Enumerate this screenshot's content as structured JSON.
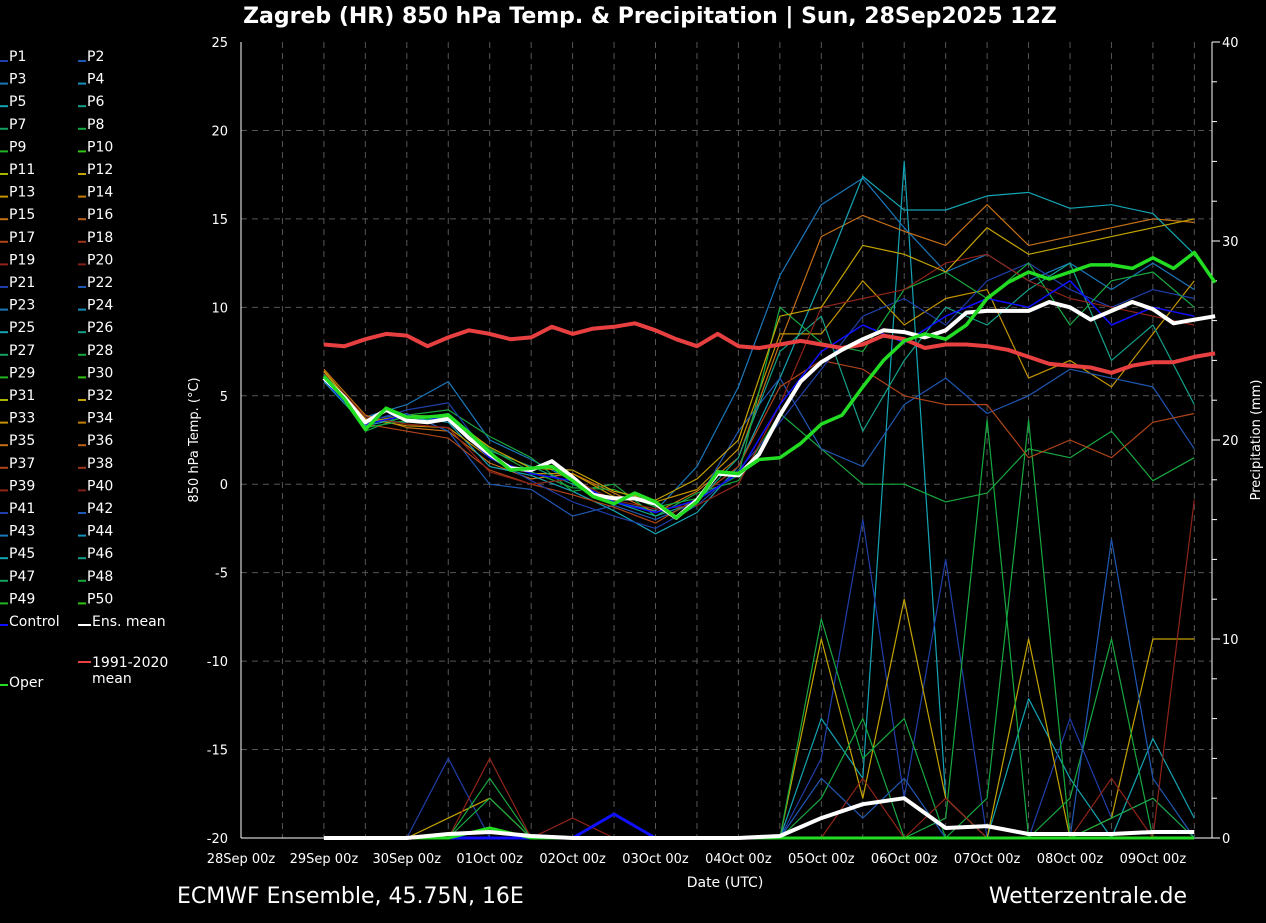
{
  "chart_data": {
    "type": "line",
    "title": "Zagreb  (HR)  850 hPa Temp. & Precipitation | Sun, 28Sep2025 12Z",
    "xlabel": "Date (UTC)",
    "ylabel": "850 hPa Temp. (°C)",
    "y2label": "Precipitation (mm)",
    "ylim": [
      -20,
      25
    ],
    "y2lim": [
      0,
      40
    ],
    "yticks": [
      "25",
      "20",
      "15",
      "10",
      "5",
      "0",
      "-5",
      "-10",
      "-15",
      "-20"
    ],
    "y2ticks": [
      "40",
      "30",
      "20",
      "10",
      "0"
    ],
    "xticks": [
      "28Sep 00z",
      "29Sep 00z",
      "30Sep 00z",
      "01Oct 00z",
      "02Oct 00z",
      "03Oct 00z",
      "04Oct 00z",
      "05Oct 00z",
      "06Oct 00z",
      "07Oct 00z",
      "08Oct 00z",
      "09Oct 00z"
    ],
    "grid": true,
    "legend_position": "left",
    "footer_left": "ECMWF Ensemble, 45.75N, 16E",
    "footer_right": "Wetterzentrale.de",
    "colors": {
      "control": "#1010ff",
      "ens_mean": "#ffffff",
      "climate": "#e84040",
      "oper": "#22dd22",
      "member_palette": [
        "#1f3ea8",
        "#1f58b4",
        "#1a78bc",
        "#1690bc",
        "#14a4b4",
        "#14a08a",
        "#16a060",
        "#18a840",
        "#22b422",
        "#32c412",
        "#a8b400",
        "#c4a400",
        "#c49400",
        "#c48000",
        "#c47018",
        "#c06018",
        "#b04418",
        "#a03418",
        "#902418",
        "#802018"
      ]
    },
    "x": [
      "29Sep 00z",
      "29Sep 06z",
      "29Sep 12z",
      "29Sep 18z",
      "30Sep 00z",
      "30Sep 06z",
      "30Sep 12z",
      "30Sep 18z",
      "01Oct 00z",
      "01Oct 06z",
      "01Oct 12z",
      "01Oct 18z",
      "02Oct 00z",
      "02Oct 06z",
      "02Oct 12z",
      "02Oct 18z",
      "03Oct 00z",
      "03Oct 06z",
      "03Oct 12z",
      "03Oct 18z",
      "04Oct 00z",
      "04Oct 06z",
      "04Oct 12z",
      "04Oct 18z",
      "05Oct 00z",
      "05Oct 06z",
      "05Oct 12z",
      "05Oct 18z",
      "06Oct 00z",
      "06Oct 06z",
      "06Oct 12z",
      "06Oct 18z",
      "07Oct 00z",
      "07Oct 06z",
      "07Oct 12z",
      "07Oct 18z",
      "08Oct 00z",
      "08Oct 06z",
      "08Oct 12z",
      "08Oct 18z",
      "09Oct 00z",
      "09Oct 06z",
      "09Oct 12z",
      "09Oct 18z"
    ],
    "x_members": [
      "29Sep 00z",
      "29Sep 12z",
      "30Sep 00z",
      "30Sep 12z",
      "01Oct 00z",
      "01Oct 12z",
      "02Oct 00z",
      "02Oct 12z",
      "03Oct 00z",
      "03Oct 12z",
      "04Oct 00z",
      "04Oct 12z",
      "05Oct 00z",
      "05Oct 12z",
      "06Oct 00z",
      "06Oct 12z",
      "07Oct 00z",
      "07Oct 12z",
      "08Oct 00z",
      "08Oct 12z",
      "09Oct 00z",
      "09Oct 12z"
    ],
    "temp": {
      "ens_mean": [
        6.0,
        4.9,
        3.5,
        4.2,
        3.6,
        3.5,
        3.7,
        2.6,
        1.7,
        0.9,
        0.8,
        1.3,
        0.4,
        -0.6,
        -0.8,
        -0.8,
        -1.1,
        -1.9,
        -0.9,
        0.6,
        0.5,
        1.7,
        3.9,
        5.8,
        6.9,
        7.6,
        8.2,
        8.7,
        8.6,
        8.3,
        8.7,
        9.7,
        9.8,
        9.8,
        9.8,
        10.3,
        10.0,
        9.3,
        9.8,
        10.3,
        9.9,
        9.1,
        9.3,
        9.5
      ],
      "climate": [
        7.9,
        7.8,
        8.2,
        8.5,
        8.4,
        7.8,
        8.3,
        8.7,
        8.5,
        8.2,
        8.3,
        8.9,
        8.5,
        8.8,
        8.9,
        9.1,
        8.7,
        8.2,
        7.8,
        8.5,
        7.8,
        7.7,
        7.9,
        8.1,
        7.9,
        7.7,
        7.9,
        8.4,
        8.2,
        7.7,
        7.9,
        7.9,
        7.8,
        7.6,
        7.2,
        6.8,
        6.7,
        6.6,
        6.3,
        6.7,
        6.9,
        6.9,
        7.2,
        7.4
      ],
      "oper": [
        6.1,
        4.8,
        3.1,
        4.3,
        3.8,
        3.8,
        3.9,
        2.9,
        1.8,
        0.8,
        0.9,
        1.0,
        0.2,
        -0.7,
        -1.1,
        -0.5,
        -1.0,
        -1.9,
        -1.0,
        0.7,
        0.6,
        1.4,
        1.5,
        2.3,
        3.4,
        3.9,
        5.5,
        7.0,
        8.1,
        8.5,
        8.2,
        9.0,
        10.5,
        11.4,
        12.0,
        11.6,
        12.0,
        12.4,
        12.4,
        12.2,
        12.8,
        12.2,
        13.1,
        11.4
      ],
      "control": [
        5.9,
        3.4,
        3.9,
        3.6,
        1.5,
        0.6,
        0.2,
        -1.0,
        -1.6,
        -0.9,
        0.6,
        4.5,
        7.5,
        9.0,
        8.0,
        9.5,
        10.5,
        10.0,
        11.5,
        9.0,
        10.0,
        9.5
      ],
      "members": [
        {
          "name": "P3",
          "values": [
            6.2,
            3.8,
            4.5,
            5.8,
            2.5,
            1.4,
            0.2,
            -1.0,
            -1.5,
            1.0,
            5.5,
            11.8,
            15.8,
            17.3,
            14.5,
            12.0,
            13.0,
            11.5,
            12.5,
            11.0,
            12.5,
            11.0
          ]
        },
        {
          "name": "P15",
          "values": [
            6.5,
            3.9,
            3.2,
            3.0,
            1.2,
            0.3,
            0.6,
            -0.5,
            -1.6,
            -0.4,
            1.5,
            8.0,
            14.0,
            15.2,
            14.3,
            13.5,
            15.8,
            13.5,
            14.0,
            14.5,
            15.0,
            14.8
          ]
        },
        {
          "name": "P45",
          "values": [
            5.8,
            3.3,
            3.8,
            3.5,
            1.0,
            0.5,
            -0.4,
            -1.5,
            -2.8,
            -1.6,
            1.0,
            6.0,
            11.5,
            17.4,
            15.5,
            15.5,
            16.3,
            16.5,
            15.6,
            15.8,
            15.3,
            13.0
          ]
        },
        {
          "name": "P28",
          "values": [
            6.3,
            3.0,
            3.9,
            4.2,
            2.7,
            1.5,
            -0.4,
            0.0,
            -1.8,
            -0.5,
            0.2,
            4.0,
            2.0,
            0.0,
            0.0,
            -1.0,
            -0.5,
            2.0,
            1.5,
            3.0,
            0.2,
            1.5
          ]
        },
        {
          "name": "P33",
          "values": [
            6.4,
            3.7,
            3.3,
            3.2,
            1.5,
            0.6,
            0.6,
            -0.7,
            -1.0,
            -0.3,
            2.0,
            8.5,
            8.5,
            11.5,
            9.0,
            10.5,
            11.0,
            6.0,
            7.0,
            5.5,
            8.5,
            11.5
          ]
        },
        {
          "name": "P42",
          "values": [
            6.0,
            3.6,
            4.0,
            3.0,
            0.0,
            -0.3,
            -1.8,
            -1.2,
            -2.0,
            -1.0,
            3.0,
            6.0,
            2.0,
            1.0,
            4.5,
            6.0,
            4.0,
            5.0,
            6.5,
            6.0,
            5.5,
            2.0
          ]
        },
        {
          "name": "P37",
          "values": [
            6.1,
            3.4,
            3.0,
            2.6,
            0.8,
            0.0,
            -0.6,
            -1.3,
            -2.2,
            -0.8,
            1.0,
            5.5,
            7.0,
            6.5,
            5.0,
            4.5,
            4.5,
            1.5,
            2.5,
            1.5,
            3.5,
            4.0
          ]
        },
        {
          "name": "P21",
          "values": [
            6.0,
            3.5,
            4.2,
            4.6,
            1.5,
            0.2,
            -1.0,
            -1.8,
            -2.5,
            -1.2,
            0.8,
            3.5,
            6.5,
            9.5,
            10.5,
            9.0,
            11.5,
            12.5,
            11.0,
            10.0,
            11.0,
            10.5
          ]
        },
        {
          "name": "P26",
          "values": [
            6.2,
            3.6,
            3.5,
            3.8,
            1.9,
            1.0,
            0.0,
            -1.0,
            -1.8,
            -1.0,
            1.5,
            7.5,
            9.5,
            3.0,
            7.0,
            10.0,
            9.0,
            11.0,
            12.5,
            7.0,
            9.0,
            4.5
          ]
        },
        {
          "name": "P8",
          "values": [
            6.0,
            3.2,
            3.6,
            4.0,
            2.0,
            0.7,
            -0.2,
            -0.3,
            -1.3,
            -0.8,
            0.5,
            10.0,
            8.0,
            7.5,
            11.0,
            12.0,
            10.5,
            12.5,
            9.0,
            11.5,
            12.0,
            10.0
          ]
        },
        {
          "name": "P19",
          "values": [
            6.3,
            3.8,
            3.4,
            3.2,
            0.7,
            0.0,
            0.3,
            -0.9,
            -1.4,
            -1.2,
            0.0,
            4.5,
            10.0,
            10.5,
            11.0,
            12.5,
            13.0,
            11.5,
            10.5,
            10.0,
            9.5,
            9.0
          ]
        },
        {
          "name": "P12",
          "values": [
            6.4,
            3.5,
            3.9,
            3.8,
            2.1,
            0.9,
            0.8,
            -0.4,
            -0.9,
            0.3,
            2.5,
            9.5,
            10.0,
            13.5,
            13.0,
            12.0,
            14.5,
            13.0,
            13.5,
            14.0,
            14.5,
            15.0
          ]
        }
      ]
    },
    "precip": {
      "ens_mean": [
        0,
        0,
        0,
        0.2,
        0.3,
        0.1,
        0,
        0,
        0,
        0,
        0,
        0.1,
        1.0,
        1.7,
        2.0,
        0.5,
        0.6,
        0.2,
        0.2,
        0.2,
        0.3,
        0.3
      ],
      "oper": [
        0,
        0,
        0,
        0,
        0.5,
        0,
        0,
        0,
        0,
        0,
        0,
        0,
        0,
        0,
        0,
        0,
        0,
        0,
        0,
        0,
        0,
        0
      ],
      "control": [
        0,
        0,
        0,
        0,
        0,
        0,
        0,
        1.2,
        0,
        0,
        0,
        0,
        0,
        0,
        0,
        0,
        0,
        0,
        0,
        0,
        0,
        0
      ],
      "members": [
        {
          "name": "P45",
          "values": [
            0,
            0,
            0,
            0,
            0,
            0,
            0,
            0,
            0,
            0,
            0,
            0,
            6,
            3,
            34,
            2,
            0,
            7,
            3,
            0,
            5,
            1
          ]
        },
        {
          "name": "P21",
          "values": [
            0,
            0,
            0,
            4,
            0,
            0,
            0,
            0,
            0,
            0,
            0,
            0,
            4,
            16,
            2,
            14,
            0,
            0,
            6,
            1,
            2,
            0
          ]
        },
        {
          "name": "P12",
          "values": [
            0,
            0,
            0,
            1,
            2,
            0,
            0,
            0,
            0,
            0,
            0,
            0,
            10,
            2,
            12,
            2,
            0,
            10,
            0,
            1,
            10,
            10
          ]
        },
        {
          "name": "P28",
          "values": [
            0,
            0,
            0,
            0,
            2,
            0,
            0,
            0,
            0,
            0,
            0,
            0,
            2,
            6,
            0,
            1,
            21,
            0,
            2,
            10,
            0,
            0
          ]
        },
        {
          "name": "P42",
          "values": [
            0,
            0,
            0,
            0,
            0,
            0,
            0,
            0,
            0,
            0,
            0,
            0,
            3,
            1,
            3,
            0,
            0,
            0,
            0,
            15,
            3,
            0
          ]
        },
        {
          "name": "P8",
          "values": [
            0,
            0,
            0,
            0,
            3,
            0,
            0,
            0,
            0,
            0,
            0,
            0,
            11,
            4,
            6,
            0,
            2,
            21,
            0,
            1,
            2,
            0
          ]
        },
        {
          "name": "P19",
          "values": [
            0,
            0,
            0,
            0,
            4,
            0,
            1,
            0,
            0,
            0,
            0,
            0,
            0,
            3,
            0,
            2,
            0,
            0,
            0,
            3,
            0,
            17
          ]
        }
      ]
    }
  },
  "legend": {
    "members": [
      "P1",
      "P2",
      "P3",
      "P4",
      "P5",
      "P6",
      "P7",
      "P8",
      "P9",
      "P10",
      "P11",
      "P12",
      "P13",
      "P14",
      "P15",
      "P16",
      "P17",
      "P18",
      "P19",
      "P20",
      "P21",
      "P22",
      "P23",
      "P24",
      "P25",
      "P26",
      "P27",
      "P28",
      "P29",
      "P30",
      "P31",
      "P32",
      "P33",
      "P34",
      "P35",
      "P36",
      "P37",
      "P38",
      "P39",
      "P40",
      "P41",
      "P42",
      "P43",
      "P44",
      "P45",
      "P46",
      "P47",
      "P48",
      "P49",
      "P50"
    ],
    "control": "Control",
    "ens_mean": "Ens. mean",
    "climate_line1": "1991-2020",
    "climate_line2": "mean",
    "oper": "Oper"
  }
}
